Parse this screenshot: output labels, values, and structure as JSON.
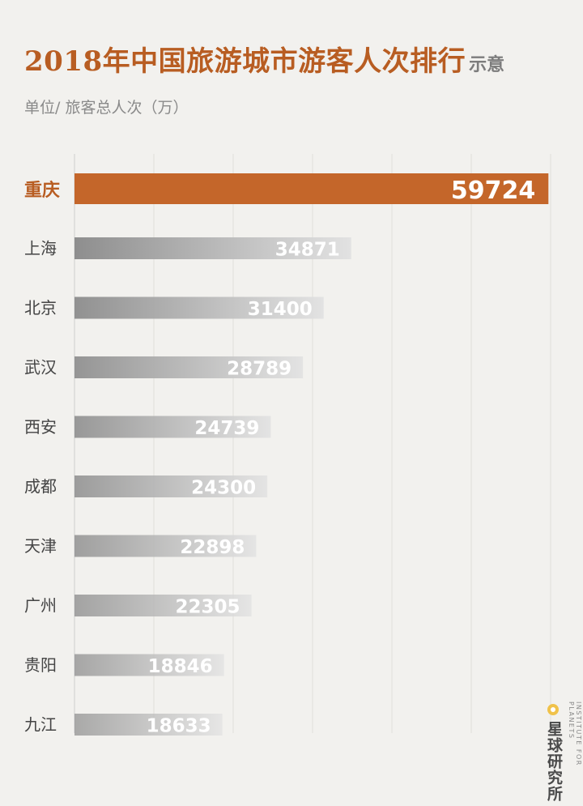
{
  "title": "2018年中国旅游城市游客人次排行",
  "title_suffix": "示意",
  "subtitle": "单位/ 旅客总人次（万）",
  "brand": {
    "name": "星球研究所",
    "name_en": "INSTITUTE FOR PLANETS",
    "dot_color": "#f0c24a"
  },
  "colors": {
    "highlight": "#c4662a",
    "label_highlight": "#b85d22",
    "label_normal": "#444444",
    "bar_gradient_dark": "#8e8e8e",
    "bar_gradient_light": "#e2e2e2"
  },
  "chart_data": {
    "type": "bar",
    "orientation": "horizontal",
    "title": "2018年中国旅游城市游客人次排行",
    "ylabel": "单位/ 旅客总人次（万）",
    "categories": [
      "重庆",
      "上海",
      "北京",
      "武汉",
      "西安",
      "成都",
      "天津",
      "广州",
      "贵阳",
      "九江"
    ],
    "values": [
      59724,
      34871,
      31400,
      28789,
      24739,
      24300,
      22898,
      22305,
      18846,
      18633
    ],
    "highlight_index": 0,
    "xlim": [
      0,
      60000
    ],
    "grid": true
  }
}
